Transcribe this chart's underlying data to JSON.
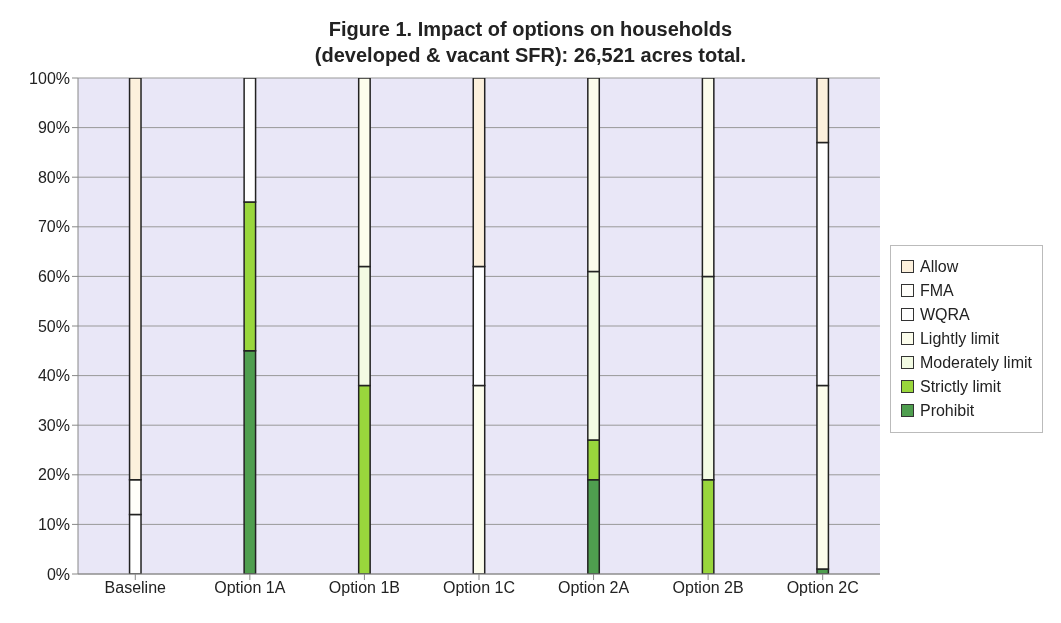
{
  "chart_data": {
    "type": "bar",
    "stacked": true,
    "title": "Figure 1.  Impact of options on households\n(developed & vacant SFR): 26,521 acres total.",
    "categories": [
      "Baseline",
      "Option 1A",
      "Option 1B",
      "Option 1C",
      "Option 2A",
      "Option 2B",
      "Option 2C"
    ],
    "series": [
      {
        "name": "Prohibit",
        "color": "#4f9e4f",
        "values": [
          null,
          45,
          null,
          null,
          19,
          null,
          1
        ]
      },
      {
        "name": "Strictly limit",
        "color": "#99d63c",
        "values": [
          null,
          30,
          38,
          null,
          8,
          19,
          null
        ]
      },
      {
        "name": "Moderately limit",
        "color": "#f3fbe3",
        "values": [
          null,
          null,
          24,
          null,
          34,
          41,
          null
        ]
      },
      {
        "name": "Lightly limit",
        "color": "#fcfdec",
        "values": [
          null,
          null,
          38,
          38,
          39,
          40,
          37
        ]
      },
      {
        "name": "WQRA",
        "color": "#ffffff",
        "values": [
          12,
          25,
          null,
          24,
          null,
          null,
          49
        ]
      },
      {
        "name": "FMA",
        "color": "#fffefa",
        "values": [
          7,
          null,
          null,
          null,
          null,
          null,
          null
        ]
      },
      {
        "name": "Allow",
        "color": "#fcf0dc",
        "values": [
          81,
          null,
          null,
          38,
          null,
          null,
          13
        ]
      }
    ],
    "ylim": [
      0,
      100
    ],
    "yticks": [
      {
        "value": 0,
        "label": "0%"
      },
      {
        "value": 10,
        "label": "10%"
      },
      {
        "value": 20,
        "label": "20%"
      },
      {
        "value": 30,
        "label": "30%"
      },
      {
        "value": 40,
        "label": "40%"
      },
      {
        "value": 50,
        "label": "50%"
      },
      {
        "value": 60,
        "label": "60%"
      },
      {
        "value": 70,
        "label": "70%"
      },
      {
        "value": 80,
        "label": "80%"
      },
      {
        "value": 90,
        "label": "90%"
      },
      {
        "value": 100,
        "label": "100%"
      }
    ],
    "grid": "y",
    "legend": "right"
  }
}
